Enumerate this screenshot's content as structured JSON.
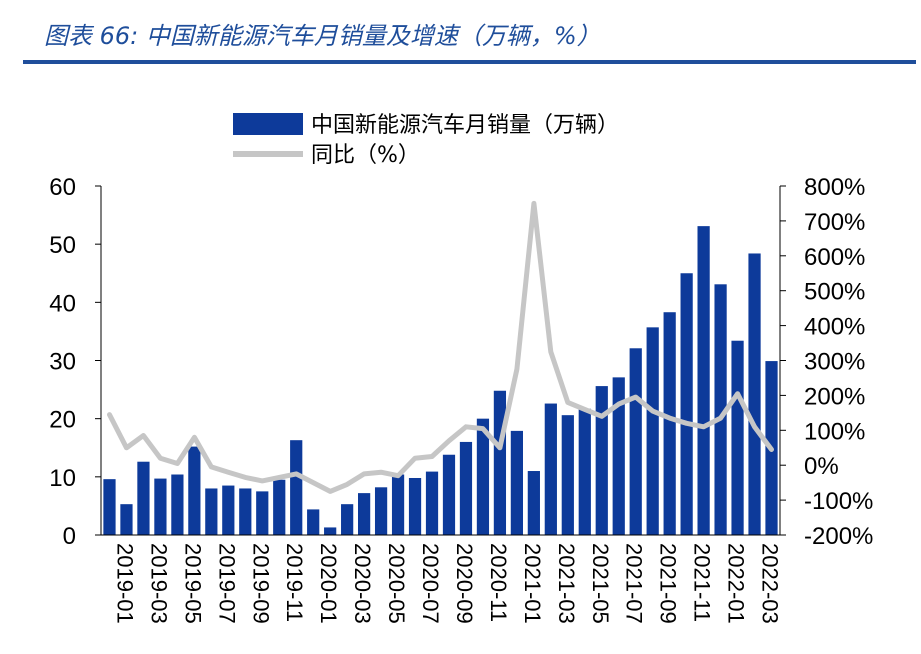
{
  "figure_title": "图表 66:  中国新能源汽车月销量及增速（万辆，%）",
  "colors": {
    "bars": "#0D3A9A",
    "line": "#C6C6C6",
    "title": "#1F4E9B",
    "axis": "#000000"
  },
  "chart_data": {
    "type": "bar+line",
    "categories": [
      "2019-01",
      "2019-02",
      "2019-03",
      "2019-04",
      "2019-05",
      "2019-06",
      "2019-07",
      "2019-08",
      "2019-09",
      "2019-10",
      "2019-11",
      "2019-12",
      "2020-01",
      "2020-02",
      "2020-03",
      "2020-04",
      "2020-05",
      "2020-06",
      "2020-07",
      "2020-08",
      "2020-09",
      "2020-10",
      "2020-11",
      "2020-12",
      "2021-01",
      "2021-02",
      "2021-03",
      "2021-04",
      "2021-05",
      "2021-06",
      "2021-07",
      "2021-08",
      "2021-09",
      "2021-10",
      "2021-11",
      "2021-12",
      "2022-01",
      "2022-02",
      "2022-03",
      "2022-04"
    ],
    "tick_labels": [
      "2019-01",
      "2019-03",
      "2019-05",
      "2019-07",
      "2019-09",
      "2019-11",
      "2020-01",
      "2020-03",
      "2020-05",
      "2020-07",
      "2020-09",
      "2020-11",
      "2021-01",
      "2021-03",
      "2021-05",
      "2021-07",
      "2021-09",
      "2021-11",
      "2022-01",
      "2022-03"
    ],
    "series": [
      {
        "name": "中国新能源汽车月销量（万辆）",
        "kind": "bar",
        "axis": "left",
        "values": [
          9.6,
          5.3,
          12.6,
          9.7,
          10.4,
          15.2,
          8.0,
          8.5,
          8.0,
          7.5,
          9.5,
          16.3,
          4.4,
          1.3,
          5.3,
          7.2,
          8.2,
          10.4,
          9.8,
          10.9,
          13.8,
          16.0,
          20.0,
          24.8,
          17.9,
          11.0,
          22.6,
          20.6,
          21.7,
          25.6,
          27.1,
          32.1,
          35.7,
          38.3,
          45.0,
          53.1,
          43.1,
          33.4,
          48.4,
          29.9
        ]
      },
      {
        "name": "同比（%）",
        "kind": "line",
        "axis": "right",
        "values": [
          145,
          50,
          85,
          20,
          5,
          80,
          -5,
          -20,
          -35,
          -45,
          -35,
          -25,
          -50,
          -75,
          -55,
          -25,
          -20,
          -30,
          20,
          25,
          70,
          110,
          105,
          50,
          275,
          750,
          325,
          180,
          160,
          140,
          175,
          195,
          155,
          135,
          120,
          110,
          135,
          205,
          110,
          45
        ]
      }
    ],
    "y_left": {
      "min": 0,
      "max": 60,
      "ticks": [
        "0",
        "10",
        "20",
        "30",
        "40",
        "50",
        "60"
      ]
    },
    "y_right": {
      "min": -200,
      "max": 800,
      "ticks": [
        "-200%",
        "-100%",
        "0%",
        "100%",
        "200%",
        "300%",
        "400%",
        "500%",
        "600%",
        "700%",
        "800%"
      ]
    },
    "legend": [
      "中国新能源汽车月销量（万辆）",
      "同比（%）"
    ],
    "legend_position": "top-center"
  }
}
